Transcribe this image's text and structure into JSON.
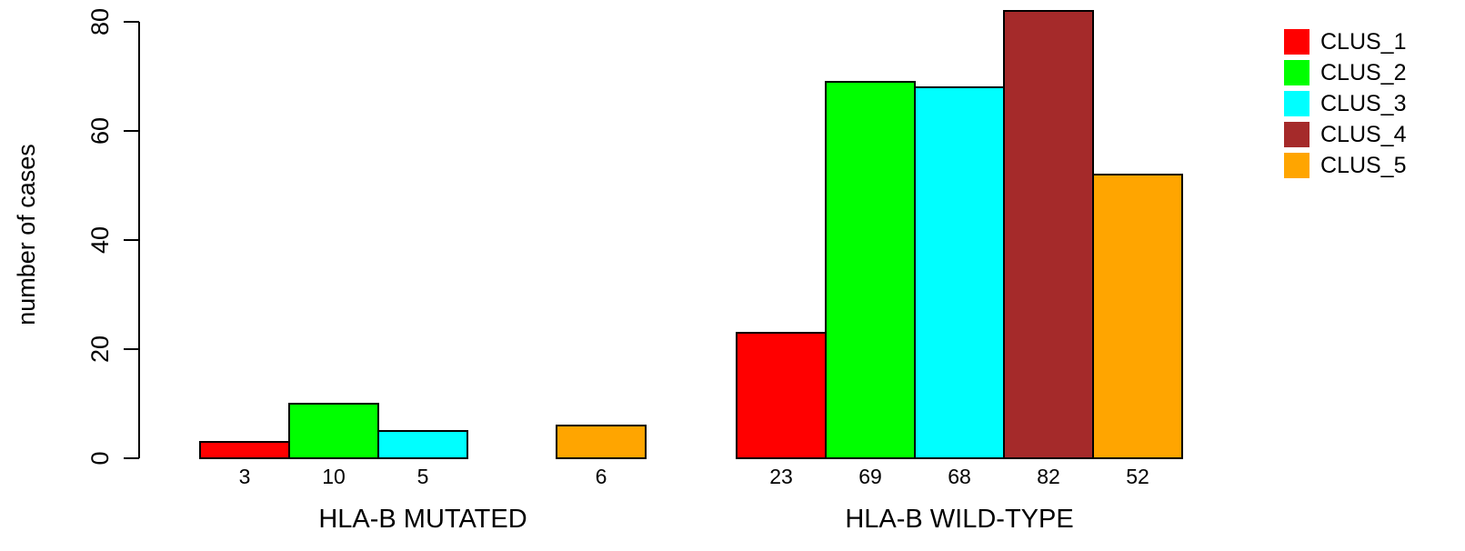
{
  "chart_data": {
    "type": "bar",
    "mode": "grouped",
    "title": "",
    "xlabel": "",
    "ylabel": "number of cases",
    "ylim": [
      0,
      80
    ],
    "yticks": [
      0,
      20,
      40,
      60,
      80
    ],
    "grid": false,
    "legend_position": "top-right",
    "categories": [
      "HLA-B MUTATED",
      "HLA-B WILD-TYPE"
    ],
    "series": [
      {
        "name": "CLUS_1",
        "color": "#ff0000",
        "values": [
          3,
          23
        ]
      },
      {
        "name": "CLUS_2",
        "color": "#00ff00",
        "values": [
          10,
          69
        ]
      },
      {
        "name": "CLUS_3",
        "color": "#00ffff",
        "values": [
          5,
          68
        ]
      },
      {
        "name": "CLUS_4",
        "color": "#a52a2a",
        "values": [
          0,
          82
        ]
      },
      {
        "name": "CLUS_5",
        "color": "#ffa500",
        "values": [
          6,
          52
        ]
      }
    ],
    "data_labels": [
      [
        "3",
        "10",
        "5",
        "",
        "6"
      ],
      [
        "23",
        "69",
        "68",
        "82",
        "52"
      ]
    ]
  }
}
